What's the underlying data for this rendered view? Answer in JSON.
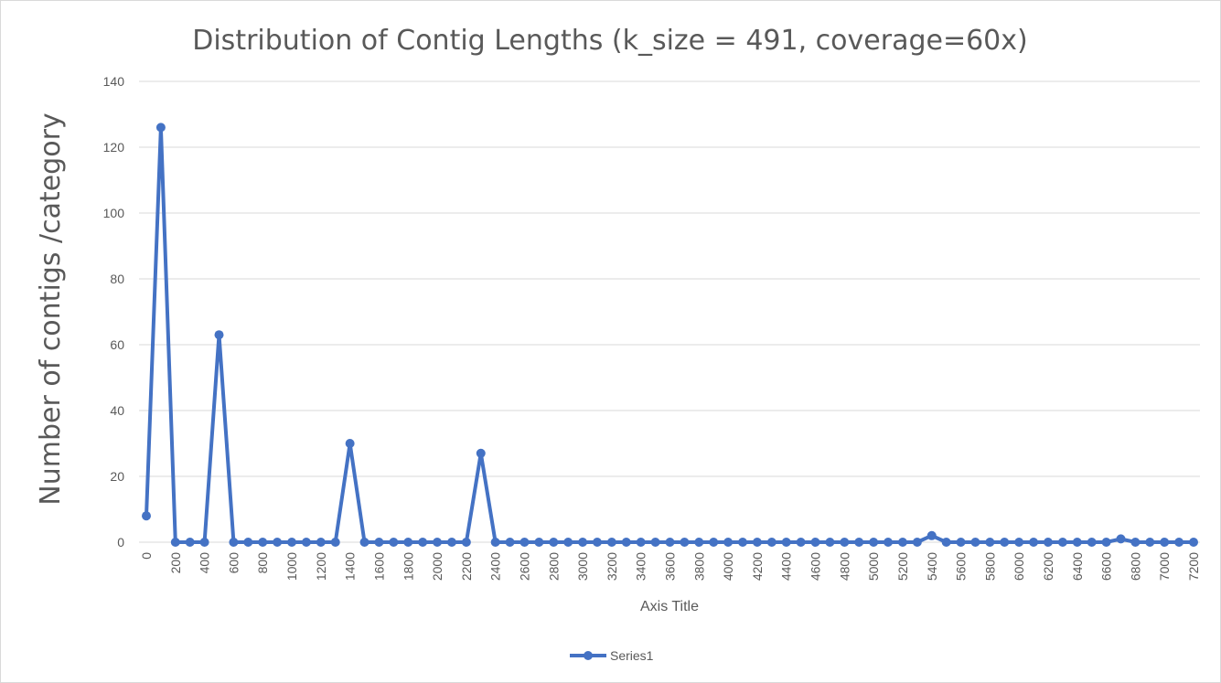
{
  "chart_data": {
    "type": "line",
    "title": "Distribution of Contig Lengths (k_size = 491, coverage=60x)",
    "xlabel": "Axis Title",
    "ylabel": "Number of contigs /category",
    "ylim": [
      0,
      140
    ],
    "yticks": [
      0,
      20,
      40,
      60,
      80,
      100,
      120,
      140
    ],
    "grid": true,
    "legend_position": "bottom",
    "series_color": "#4472C4",
    "x": [
      0,
      100,
      200,
      300,
      400,
      500,
      600,
      700,
      800,
      900,
      1000,
      1100,
      1200,
      1300,
      1400,
      1500,
      1600,
      1700,
      1800,
      1900,
      2000,
      2100,
      2200,
      2300,
      2400,
      2500,
      2600,
      2700,
      2800,
      2900,
      3000,
      3100,
      3200,
      3300,
      3400,
      3500,
      3600,
      3700,
      3800,
      3900,
      4000,
      4100,
      4200,
      4300,
      4400,
      4500,
      4600,
      4700,
      4800,
      4900,
      5000,
      5100,
      5200,
      5300,
      5400,
      5500,
      5600,
      5700,
      5800,
      5900,
      6000,
      6100,
      6200,
      6300,
      6400,
      6500,
      6600,
      6700,
      6800,
      6900,
      7000,
      7100,
      7200
    ],
    "xtick_labels": [
      "0",
      "200",
      "400",
      "600",
      "800",
      "1000",
      "1200",
      "1400",
      "1600",
      "1800",
      "2000",
      "2200",
      "2400",
      "2600",
      "2800",
      "3000",
      "3200",
      "3400",
      "3600",
      "3800",
      "4000",
      "4200",
      "4400",
      "4600",
      "4800",
      "5000",
      "5200",
      "5400",
      "5600",
      "5800",
      "6000",
      "6200",
      "6400",
      "6600",
      "6800",
      "7000",
      "7200"
    ],
    "series": [
      {
        "name": "Series1",
        "values": [
          8,
          126,
          0,
          0,
          0,
          63,
          0,
          0,
          0,
          0,
          0,
          0,
          0,
          0,
          30,
          0,
          0,
          0,
          0,
          0,
          0,
          0,
          0,
          27,
          0,
          0,
          0,
          0,
          0,
          0,
          0,
          0,
          0,
          0,
          0,
          0,
          0,
          0,
          0,
          0,
          0,
          0,
          0,
          0,
          0,
          0,
          0,
          0,
          0,
          0,
          0,
          0,
          0,
          0,
          2,
          0,
          0,
          0,
          0,
          0,
          0,
          0,
          0,
          0,
          0,
          0,
          0,
          1,
          0,
          0,
          0,
          0,
          0
        ]
      }
    ]
  }
}
